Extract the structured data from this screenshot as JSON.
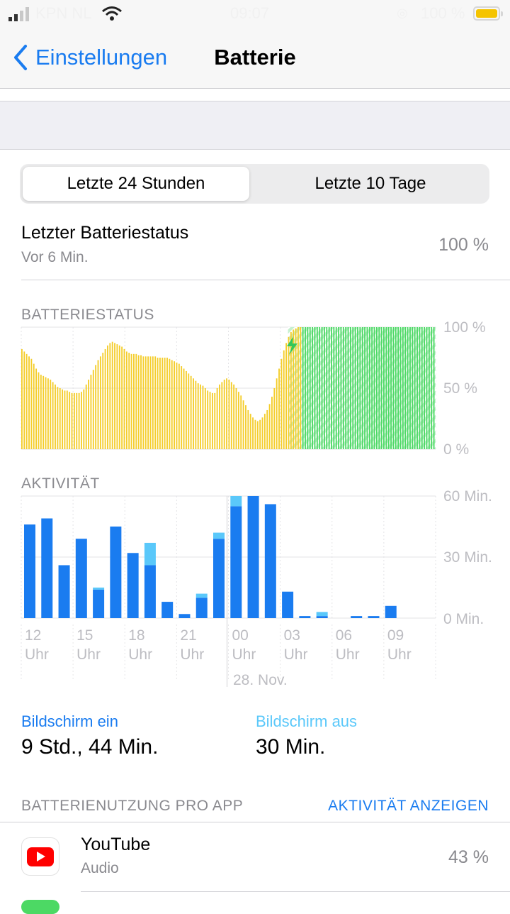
{
  "status_bar": {
    "carrier": "KPN NL",
    "time": "09:07",
    "battery_text": "100 %",
    "battery_color": "#f5c400"
  },
  "nav": {
    "back_label": "Einstellungen",
    "back_icon": "chevron-left-icon",
    "title": "Batterie"
  },
  "segmented": {
    "options": [
      "Letzte 24 Stunden",
      "Letzte 10 Tage"
    ],
    "selected": "Letzte 24 Stunden"
  },
  "last_status": {
    "title": "Letzter Batteriestatus",
    "subtitle": "Vor 6 Min.",
    "value": "100 %"
  },
  "charts": {
    "battery_section_label": "BATTERIESTATUS",
    "activity_section_label": "AKTIVITÄT"
  },
  "chart_data": [
    {
      "type": "bar",
      "title": "BATTERIESTATUS",
      "yticks": [
        "100 %",
        "50 %",
        "0 %"
      ],
      "ylim": [
        0,
        100
      ],
      "colors": {
        "discharging": "#f4cd2a",
        "charging": "#4cd964",
        "charging_hatch": "#c5f0cf"
      },
      "values": [
        82,
        80,
        78,
        76,
        74,
        70,
        66,
        63,
        61,
        60,
        59,
        58,
        57,
        55,
        53,
        51,
        50,
        49,
        48,
        48,
        47,
        46,
        46,
        46,
        46,
        47,
        49,
        53,
        57,
        61,
        65,
        69,
        73,
        76,
        79,
        82,
        85,
        87,
        88,
        87,
        86,
        85,
        84,
        82,
        80,
        79,
        78,
        78,
        78,
        77,
        77,
        76,
        76,
        76,
        76,
        76,
        76,
        75,
        75,
        75,
        75,
        75,
        74,
        73,
        72,
        71,
        70,
        68,
        66,
        64,
        62,
        60,
        58,
        56,
        54,
        53,
        52,
        50,
        48,
        47,
        46,
        46,
        50,
        53,
        55,
        57,
        58,
        57,
        55,
        53,
        50,
        47,
        44,
        40,
        36,
        32,
        29,
        26,
        24,
        23,
        24,
        26,
        29,
        32,
        37,
        43,
        50,
        58,
        66,
        74,
        81,
        87,
        92,
        96,
        98,
        99,
        100,
        100,
        100,
        100,
        100,
        100,
        100,
        100,
        100,
        100,
        100,
        100,
        100,
        100,
        100,
        100,
        100,
        100,
        100,
        100,
        100,
        100,
        100,
        100,
        100,
        100,
        100,
        100,
        100,
        100,
        100,
        100,
        100,
        100,
        100,
        100,
        100,
        100,
        100,
        100,
        100,
        100,
        100,
        100,
        100,
        100,
        100,
        100,
        100,
        100,
        100,
        100,
        100,
        100,
        100,
        100,
        100,
        100
      ],
      "charging_from_index": 112
    },
    {
      "type": "bar",
      "title": "AKTIVITÄT",
      "yticks": [
        "60 Min.",
        "30 Min.",
        "0 Min."
      ],
      "ylim": [
        0,
        60
      ],
      "x_labels": [
        {
          "hour": "12",
          "suffix": "Uhr"
        },
        {
          "hour": "15",
          "suffix": "Uhr"
        },
        {
          "hour": "18",
          "suffix": "Uhr"
        },
        {
          "hour": "21",
          "suffix": "Uhr"
        },
        {
          "hour": "00",
          "suffix": "Uhr"
        },
        {
          "hour": "03",
          "suffix": "Uhr"
        },
        {
          "hour": "06",
          "suffix": "Uhr"
        },
        {
          "hour": "09",
          "suffix": "Uhr"
        }
      ],
      "date_label": "28. Nov.",
      "series": [
        {
          "name": "Bildschirm ein",
          "color": "#1a7cf0",
          "values": [
            46,
            49,
            26,
            39,
            14,
            45,
            32,
            26,
            8,
            2,
            10,
            39,
            55,
            60,
            56,
            13,
            1,
            1,
            0,
            1,
            1,
            6
          ]
        },
        {
          "name": "Bildschirm aus",
          "color": "#5ac8fa",
          "values": [
            0,
            0,
            0,
            0,
            1,
            0,
            0,
            11,
            0,
            0,
            2,
            3,
            5,
            0,
            0,
            0,
            0,
            2,
            0,
            0,
            0,
            0
          ]
        }
      ]
    }
  ],
  "usage": {
    "screen_on_label": "Bildschirm ein",
    "screen_on_value": "9 Std., 44 Min.",
    "screen_on_color": "#1a7cf0",
    "screen_off_label": "Bildschirm aus",
    "screen_off_value": "30 Min.",
    "screen_off_color": "#5ac8fa"
  },
  "per_app": {
    "section_label": "BATTERIENUTZUNG PRO APP",
    "action_label": "AKTIVITÄT ANZEIGEN",
    "apps": [
      {
        "name": "YouTube",
        "subtitle": "Audio",
        "value": "43 %",
        "icon": "youtube-icon"
      }
    ]
  }
}
